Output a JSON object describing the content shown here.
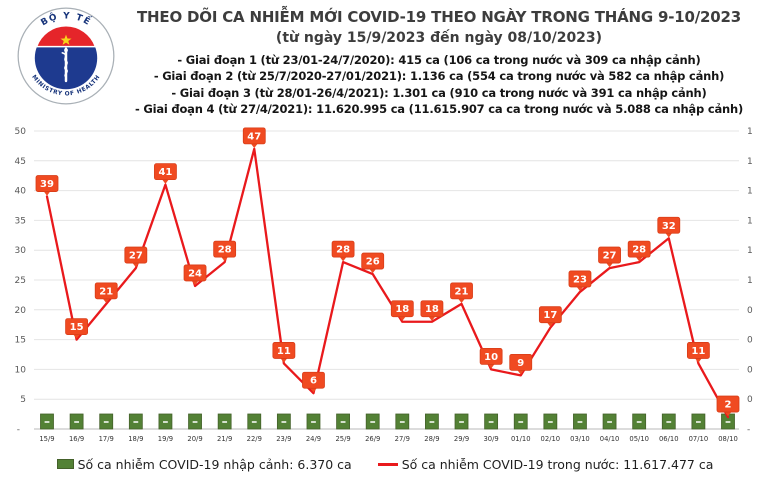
{
  "logo": {
    "top_text": "BỘ Y TẾ",
    "bottom_text": "MINISTRY OF HEALTH",
    "colors": {
      "navy": "#1e3a8f",
      "red": "#e5252a",
      "star_yellow": "#f8d31c",
      "ring_gray": "#a9b0b6"
    }
  },
  "header": {
    "title": "THEO DÕI CA NHIỄM MỚI COVID-19 THEO NGÀY TRONG THÁNG 9-10/2023",
    "subtitle": "(từ ngày 15/9/2023 đến ngày 08/10/2023)",
    "periods": [
      "- Giai đoạn 1 (từ 23/01-24/7/2020): 415 ca (106 ca trong nước và 309 ca nhập cảnh)",
      "- Giai đoạn 2 (từ 25/7/2020-27/01/2021): 1.136 ca (554 ca trong nước và 582 ca nhập cảnh)",
      "- Giai đoạn 3 (từ 28/01-26/4/2021): 1.301 ca (910 ca trong nước và 391 ca nhập cảnh)",
      "- Giai đoạn 4 (từ 27/4/2021): 11.620.995 ca (11.615.907 ca ca trong nước và 5.088 ca nhập cảnh)"
    ]
  },
  "chart_data": {
    "type": "line",
    "title": "THEO DÕI CA NHIỄM MỚI COVID-19 THEO NGÀY TRONG THÁNG 9-10/2023",
    "categories": [
      "15/9",
      "16/9",
      "17/9",
      "18/9",
      "19/9",
      "20/9",
      "21/9",
      "22/9",
      "23/9",
      "24/9",
      "25/9",
      "26/9",
      "27/9",
      "28/9",
      "29/9",
      "30/9",
      "01/10",
      "02/10",
      "03/10",
      "04/10",
      "05/10",
      "06/10",
      "07/10",
      "08/10"
    ],
    "series": [
      {
        "name": "Số ca nhiễm COVID-19 trong nước",
        "type": "line",
        "color": "#e9191c",
        "label_box_color": "#f04a21",
        "label_box_border": "#d83d18",
        "values": [
          39,
          15,
          21,
          27,
          41,
          24,
          28,
          47,
          11,
          6,
          28,
          26,
          18,
          18,
          21,
          10,
          9,
          17,
          23,
          27,
          28,
          32,
          11,
          2
        ]
      },
      {
        "name": "Số ca nhiễm COVID-19 nhập cảnh",
        "type": "bar",
        "color": "#538135",
        "border": "#44612a",
        "value_label_shown": "-",
        "values": [
          0,
          0,
          0,
          0,
          0,
          0,
          0,
          0,
          0,
          0,
          0,
          0,
          0,
          0,
          0,
          0,
          0,
          0,
          0,
          0,
          0,
          0,
          0,
          0
        ]
      }
    ],
    "left_axis": {
      "ticks": [
        50,
        45,
        40,
        35,
        30,
        25,
        20,
        15,
        10,
        5
      ],
      "baseline_label": "-",
      "min": 0,
      "max": 50
    },
    "right_axis": {
      "tick_labels": [
        "1",
        "1",
        "1",
        "1",
        "1",
        "1",
        "0",
        "0",
        "0",
        "0"
      ],
      "baseline_label": "-"
    },
    "grid": true,
    "legend_position": "bottom"
  },
  "legend": {
    "items": [
      {
        "swatch": "square",
        "color": "#538135",
        "label": "Số ca nhiễm COVID-19 nhập cảnh: 6.370 ca"
      },
      {
        "swatch": "line",
        "color": "#e9191c",
        "label": "Số ca nhiễm COVID-19 trong nước: 11.617.477 ca"
      }
    ]
  }
}
